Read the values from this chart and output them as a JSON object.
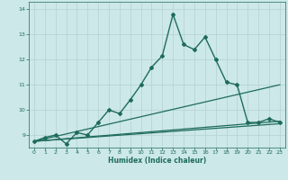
{
  "title": "",
  "xlabel": "Humidex (Indice chaleur)",
  "bg_color": "#cce8e8",
  "grid_color": "#b8d4d4",
  "line_color": "#1e6b5e",
  "xlim": [
    -0.5,
    23.5
  ],
  "ylim": [
    8.5,
    14.3
  ],
  "yticks": [
    9,
    10,
    11,
    12,
    13,
    14
  ],
  "xticks": [
    0,
    1,
    2,
    3,
    4,
    5,
    6,
    7,
    8,
    9,
    10,
    11,
    12,
    13,
    14,
    15,
    16,
    17,
    18,
    19,
    20,
    21,
    22,
    23
  ],
  "series": [
    {
      "x": [
        0,
        1,
        2,
        3,
        4,
        5,
        6,
        7,
        8,
        9,
        10,
        11,
        12,
        13,
        14,
        15,
        16,
        17,
        18,
        19,
        20,
        21,
        22,
        23
      ],
      "y": [
        8.75,
        8.9,
        9.0,
        8.65,
        9.1,
        9.0,
        9.5,
        10.0,
        9.85,
        10.4,
        11.0,
        11.7,
        12.15,
        13.8,
        12.6,
        12.4,
        12.9,
        12.0,
        11.1,
        11.0,
        9.5,
        9.5,
        9.65,
        9.5
      ],
      "marker": "D",
      "markersize": 2.0,
      "linewidth": 1.0,
      "has_marker": true
    },
    {
      "x": [
        0,
        23
      ],
      "y": [
        8.75,
        11.0
      ],
      "marker": null,
      "markersize": 0,
      "linewidth": 0.9,
      "has_marker": false
    },
    {
      "x": [
        0,
        23
      ],
      "y": [
        8.75,
        9.55
      ],
      "marker": null,
      "markersize": 0,
      "linewidth": 0.9,
      "has_marker": false
    },
    {
      "x": [
        0,
        23
      ],
      "y": [
        8.75,
        9.45
      ],
      "marker": null,
      "markersize": 0,
      "linewidth": 0.9,
      "has_marker": false
    }
  ]
}
